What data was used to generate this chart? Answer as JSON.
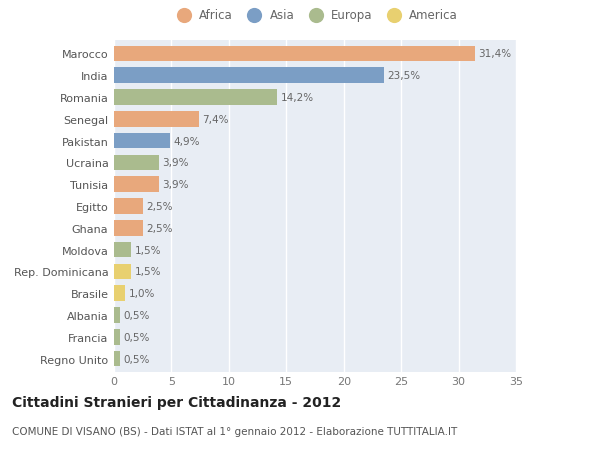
{
  "countries": [
    "Marocco",
    "India",
    "Romania",
    "Senegal",
    "Pakistan",
    "Ucraina",
    "Tunisia",
    "Egitto",
    "Ghana",
    "Moldova",
    "Rep. Dominicana",
    "Brasile",
    "Albania",
    "Francia",
    "Regno Unito"
  ],
  "values": [
    31.4,
    23.5,
    14.2,
    7.4,
    4.9,
    3.9,
    3.9,
    2.5,
    2.5,
    1.5,
    1.5,
    1.0,
    0.5,
    0.5,
    0.5
  ],
  "labels": [
    "31,4%",
    "23,5%",
    "14,2%",
    "7,4%",
    "4,9%",
    "3,9%",
    "3,9%",
    "2,5%",
    "2,5%",
    "1,5%",
    "1,5%",
    "1,0%",
    "0,5%",
    "0,5%",
    "0,5%"
  ],
  "continents": [
    "Africa",
    "Asia",
    "Europa",
    "Africa",
    "Asia",
    "Europa",
    "Africa",
    "Africa",
    "Africa",
    "Europa",
    "America",
    "America",
    "Europa",
    "Europa",
    "Europa"
  ],
  "colors": {
    "Africa": "#E8A87C",
    "Asia": "#7B9EC5",
    "Europa": "#AABB8E",
    "America": "#E8D070"
  },
  "legend_order": [
    "Africa",
    "Asia",
    "Europa",
    "America"
  ],
  "title": "Cittadini Stranieri per Cittadinanza - 2012",
  "subtitle": "COMUNE DI VISANO (BS) - Dati ISTAT al 1° gennaio 2012 - Elaborazione TUTTITALIA.IT",
  "xlim": [
    0,
    35
  ],
  "xticks": [
    0,
    5,
    10,
    15,
    20,
    25,
    30,
    35
  ],
  "background_color": "#ffffff",
  "plot_bg_color": "#e8edf4",
  "grid_color": "#ffffff",
  "bar_height": 0.72,
  "title_fontsize": 10,
  "subtitle_fontsize": 7.5,
  "tick_fontsize": 8,
  "label_fontsize": 7.5
}
